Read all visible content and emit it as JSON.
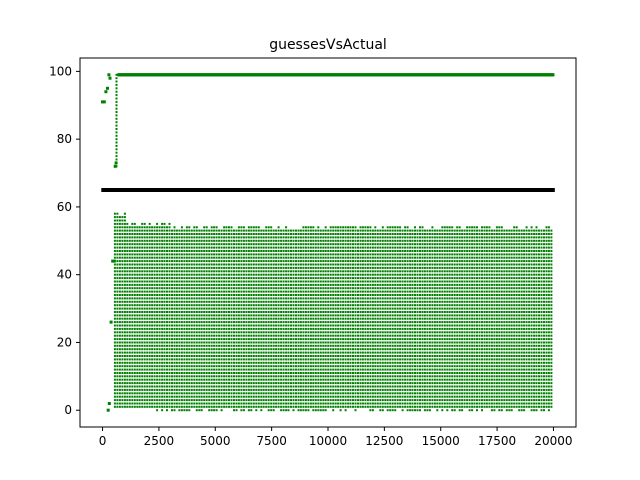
{
  "chart_data": {
    "type": "scatter",
    "title": "guessesVsActual",
    "xlabel": "",
    "ylabel": "",
    "xlim": [
      -1000,
      21000
    ],
    "ylim": [
      -4.95,
      103.95
    ],
    "grid": false,
    "x_ticks": [
      0,
      2500,
      5000,
      7500,
      10000,
      12500,
      15000,
      17500,
      20000
    ],
    "x_tick_labels": [
      "0",
      "2500",
      "5000",
      "7500",
      "10000",
      "12500",
      "15000",
      "17500",
      "20000"
    ],
    "y_ticks": [
      0,
      20,
      40,
      60,
      80,
      100
    ],
    "y_tick_labels": [
      "0",
      "20",
      "40",
      "60",
      "80",
      "100"
    ],
    "series": [
      {
        "role": "actual",
        "color": "#000000",
        "description_constant": 65,
        "x_start": 0,
        "x_end": 20000
      },
      {
        "role": "guesses",
        "color": "#008000",
        "early_points": [
          {
            "x": 0,
            "y": 91
          },
          {
            "x": 80,
            "y": 91
          },
          {
            "x": 150,
            "y": 94
          },
          {
            "x": 220,
            "y": 95
          },
          {
            "x": 280,
            "y": 99
          },
          {
            "x": 330,
            "y": 98
          },
          {
            "x": 250,
            "y": 0
          },
          {
            "x": 300,
            "y": 2
          },
          {
            "x": 380,
            "y": 26
          },
          {
            "x": 450,
            "y": 44
          },
          {
            "x": 520,
            "y": 44
          },
          {
            "x": 560,
            "y": 72
          },
          {
            "x": 600,
            "y": 73
          }
        ],
        "upper_line_y": 99,
        "upper_line_x": [
          700,
          20000
        ],
        "column_spacing": 110,
        "column_x_range": [
          550,
          20000
        ],
        "lower_band_top": 54,
        "lower_band_bottom": 0
      }
    ]
  }
}
